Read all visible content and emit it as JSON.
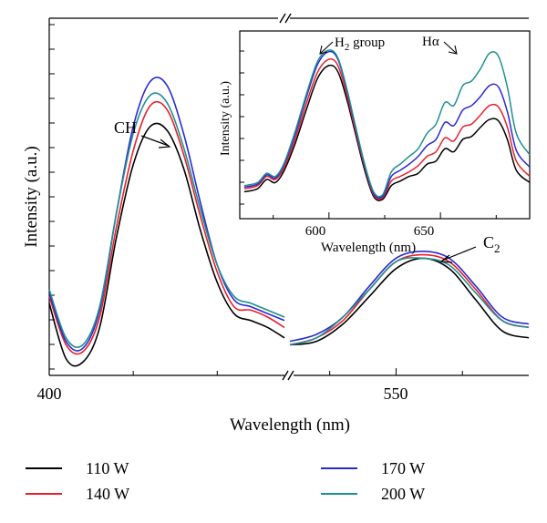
{
  "chart_data": [
    {
      "type": "line",
      "xlabel": "Wavelength (nm)",
      "ylabel": "Intensity (a.u.)",
      "broken_axis": true,
      "x_segments": [
        {
          "xlim": [
            400,
            470
          ],
          "ticks": [
            400
          ]
        },
        {
          "xlim": [
            510,
            600
          ],
          "ticks": [
            550
          ]
        }
      ],
      "annotations": [
        "CH",
        "C2"
      ],
      "grid": false,
      "legend_position": "bottom",
      "series": [
        {
          "name": "110 W",
          "color": "#000000",
          "segment1": {
            "x": [
              400,
              405,
              410,
              415,
              420,
              425,
              430,
              435,
              440,
              445,
              450,
              455,
              460,
              465,
              470
            ],
            "y": [
              0.19,
              0.03,
              0.02,
              0.12,
              0.38,
              0.59,
              0.7,
              0.69,
              0.58,
              0.4,
              0.25,
              0.16,
              0.14,
              0.12,
              0.09
            ]
          },
          "segment2": {
            "x": [
              510,
              520,
              530,
              540,
              550,
              560,
              570,
              580,
              590,
              600
            ],
            "y": [
              0.07,
              0.08,
              0.13,
              0.21,
              0.29,
              0.32,
              0.29,
              0.2,
              0.11,
              0.09
            ]
          }
        },
        {
          "name": "140 W",
          "color": "#e8202a",
          "segment1": {
            "x": [
              400,
              405,
              410,
              415,
              420,
              425,
              430,
              435,
              440,
              445,
              450,
              455,
              460,
              465,
              470
            ],
            "y": [
              0.21,
              0.07,
              0.05,
              0.15,
              0.41,
              0.63,
              0.76,
              0.75,
              0.62,
              0.44,
              0.28,
              0.18,
              0.17,
              0.15,
              0.12
            ]
          },
          "segment2": {
            "x": [
              510,
              520,
              530,
              540,
              550,
              560,
              570,
              580,
              590,
              600
            ],
            "y": [
              0.07,
              0.09,
              0.14,
              0.23,
              0.31,
              0.33,
              0.31,
              0.23,
              0.14,
              0.12
            ]
          }
        },
        {
          "name": "170 W",
          "color": "#2a2ad2",
          "segment1": {
            "x": [
              400,
              405,
              410,
              415,
              420,
              425,
              430,
              435,
              440,
              445,
              450,
              455,
              460,
              465,
              470
            ],
            "y": [
              0.22,
              0.08,
              0.06,
              0.17,
              0.45,
              0.7,
              0.83,
              0.82,
              0.68,
              0.48,
              0.3,
              0.2,
              0.18,
              0.16,
              0.14
            ]
          },
          "segment2": {
            "x": [
              510,
              520,
              530,
              540,
              550,
              560,
              570,
              580,
              590,
              600
            ],
            "y": [
              0.08,
              0.1,
              0.15,
              0.24,
              0.32,
              0.34,
              0.32,
              0.24,
              0.15,
              0.13
            ]
          }
        },
        {
          "name": "200 W",
          "color": "#1f8f8f",
          "segment1": {
            "x": [
              400,
              405,
              410,
              415,
              420,
              425,
              430,
              435,
              440,
              445,
              450,
              455,
              460,
              465,
              470
            ],
            "y": [
              0.23,
              0.09,
              0.07,
              0.18,
              0.45,
              0.68,
              0.79,
              0.77,
              0.64,
              0.46,
              0.3,
              0.21,
              0.19,
              0.17,
              0.15
            ]
          },
          "segment2": {
            "x": [
              510,
              520,
              530,
              540,
              550,
              560,
              570,
              580,
              590,
              600
            ],
            "y": [
              0.07,
              0.09,
              0.15,
              0.23,
              0.31,
              0.32,
              0.3,
              0.22,
              0.14,
              0.12
            ]
          }
        }
      ]
    },
    {
      "type": "line",
      "inset": true,
      "xlabel": "Wavelength (nm)",
      "ylabel": "Intensity (a.u.)",
      "xlim": [
        560,
        690
      ],
      "x_ticks": [
        600,
        650
      ],
      "annotations": [
        "H2 group",
        "Hα"
      ],
      "grid": false,
      "series": [
        {
          "name": "110 W",
          "color": "#000000",
          "x": [
            562,
            568,
            572,
            576,
            580,
            585,
            590,
            595,
            600,
            604,
            608,
            612,
            616,
            620,
            624,
            628,
            632,
            636,
            640,
            644,
            648,
            652,
            656,
            660,
            664,
            668,
            672,
            676,
            680,
            684,
            690
          ],
          "y": [
            0.08,
            0.1,
            0.16,
            0.14,
            0.22,
            0.4,
            0.62,
            0.82,
            0.9,
            0.86,
            0.68,
            0.45,
            0.22,
            0.05,
            0.03,
            0.12,
            0.15,
            0.18,
            0.2,
            0.26,
            0.28,
            0.36,
            0.34,
            0.42,
            0.44,
            0.5,
            0.55,
            0.54,
            0.42,
            0.22,
            0.14
          ]
        },
        {
          "name": "140 W",
          "color": "#e8202a",
          "x": [
            562,
            568,
            572,
            576,
            580,
            585,
            590,
            595,
            600,
            604,
            608,
            612,
            616,
            620,
            624,
            628,
            632,
            636,
            640,
            644,
            648,
            652,
            656,
            660,
            664,
            668,
            672,
            676,
            680,
            684,
            690
          ],
          "y": [
            0.1,
            0.12,
            0.18,
            0.16,
            0.24,
            0.43,
            0.66,
            0.86,
            0.94,
            0.9,
            0.71,
            0.47,
            0.24,
            0.06,
            0.04,
            0.15,
            0.18,
            0.21,
            0.25,
            0.31,
            0.34,
            0.43,
            0.41,
            0.5,
            0.52,
            0.58,
            0.64,
            0.63,
            0.5,
            0.28,
            0.18
          ]
        },
        {
          "name": "170 W",
          "color": "#2a2ad2",
          "x": [
            562,
            568,
            572,
            576,
            580,
            585,
            590,
            595,
            600,
            604,
            608,
            612,
            616,
            620,
            624,
            628,
            632,
            636,
            640,
            644,
            648,
            652,
            656,
            660,
            664,
            668,
            672,
            676,
            680,
            684,
            690
          ],
          "y": [
            0.11,
            0.13,
            0.19,
            0.17,
            0.26,
            0.46,
            0.7,
            0.91,
            0.99,
            0.94,
            0.74,
            0.49,
            0.25,
            0.07,
            0.05,
            0.18,
            0.22,
            0.26,
            0.31,
            0.38,
            0.42,
            0.53,
            0.51,
            0.61,
            0.64,
            0.7,
            0.77,
            0.76,
            0.6,
            0.35,
            0.24
          ]
        },
        {
          "name": "200 W",
          "color": "#1f8f8f",
          "x": [
            562,
            568,
            572,
            576,
            580,
            585,
            590,
            595,
            600,
            604,
            608,
            612,
            616,
            620,
            624,
            628,
            632,
            636,
            640,
            644,
            648,
            652,
            656,
            660,
            664,
            668,
            672,
            676,
            680,
            684,
            690
          ],
          "y": [
            0.12,
            0.14,
            0.2,
            0.18,
            0.27,
            0.48,
            0.72,
            0.93,
            1.0,
            0.95,
            0.75,
            0.5,
            0.26,
            0.08,
            0.06,
            0.21,
            0.26,
            0.31,
            0.36,
            0.46,
            0.52,
            0.66,
            0.64,
            0.77,
            0.8,
            0.88,
            0.98,
            0.96,
            0.76,
            0.46,
            0.32
          ]
        }
      ]
    }
  ],
  "labels": {
    "main_xlabel": "Wavelength (nm)",
    "main_ylabel": "Intensity (a.u.)",
    "tick_400": "400",
    "tick_550": "550",
    "ch": "CH",
    "c2_base": "C",
    "c2_sub": "2",
    "inset_xlabel": "Wavelength (nm)",
    "inset_ylabel": "Intensity (a.u.)",
    "inset_tick_600": "600",
    "inset_tick_650": "650",
    "h2_base": "H",
    "h2_sub": "2",
    "h2_rest": " group",
    "halpha": "Hα"
  },
  "legend": [
    {
      "label": "110 W",
      "color": "#000000"
    },
    {
      "label": "140 W",
      "color": "#e8202a"
    },
    {
      "label": "170 W",
      "color": "#2a2ad2"
    },
    {
      "label": "200 W",
      "color": "#1f8f8f"
    }
  ]
}
